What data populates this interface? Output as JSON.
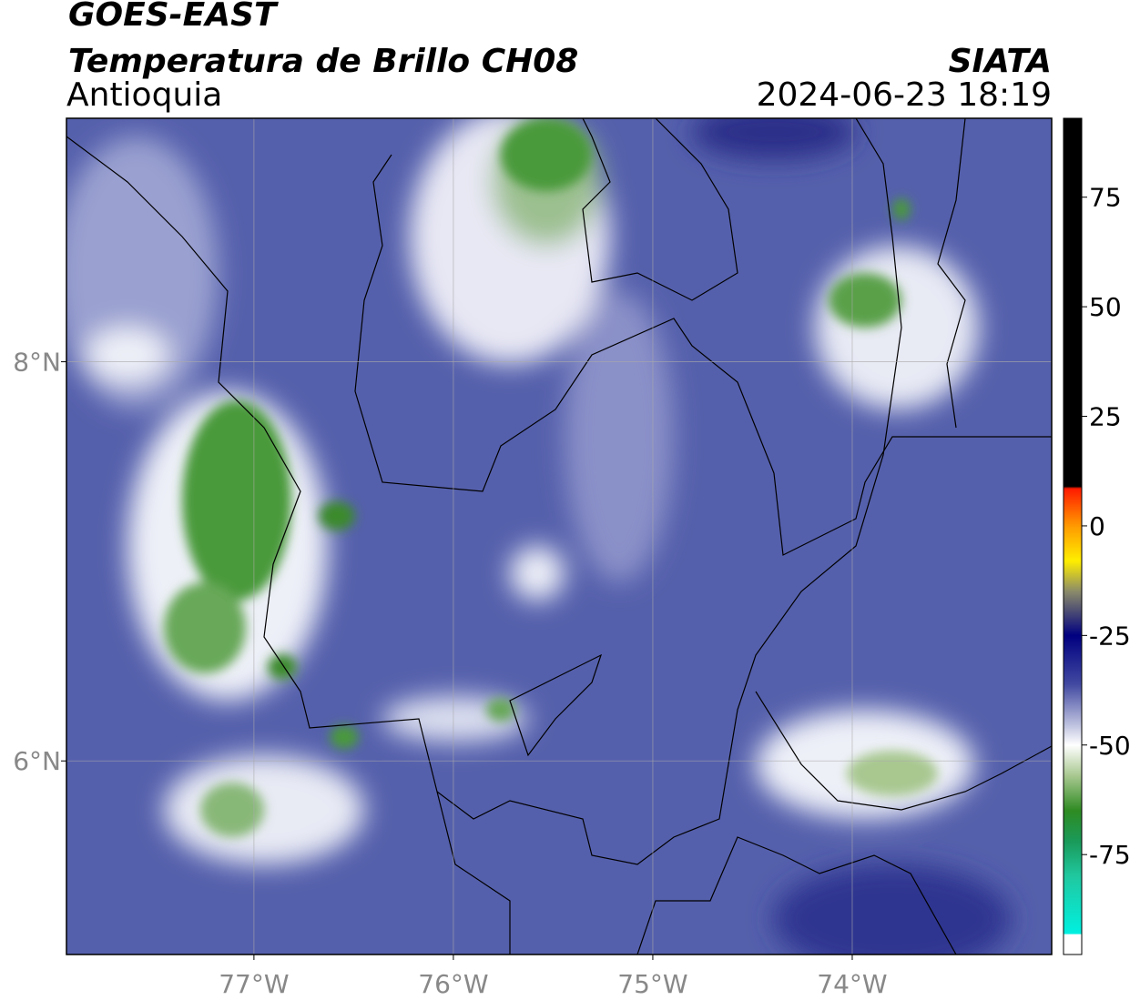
{
  "header": {
    "line1": "GOES-EAST",
    "title": "Temperatura de Brillo CH08",
    "agency": "SIATA",
    "region": "Antioquia",
    "timestamp": "2024-06-23 18:19"
  },
  "map": {
    "xlim": [
      -77.94,
      -73.0
    ],
    "ylim": [
      5.03,
      9.22
    ],
    "xticks": [
      {
        "value": -77,
        "label": "77°W"
      },
      {
        "value": -76,
        "label": "76°W"
      },
      {
        "value": -75,
        "label": "75°W"
      },
      {
        "value": -74,
        "label": "74°W"
      }
    ],
    "yticks": [
      {
        "value": 8,
        "label": "8°N"
      },
      {
        "value": 6,
        "label": "6°N"
      }
    ],
    "grid": true
  },
  "colorbar": {
    "lim": [
      -97.8,
      93
    ],
    "ticks": [
      75,
      50,
      25,
      0,
      -25,
      -50,
      -75
    ],
    "stops": [
      {
        "value": 93,
        "color": "#000000"
      },
      {
        "value": 9,
        "color": "#000000"
      },
      {
        "value": 8.5,
        "color": "#ff1a00"
      },
      {
        "value": 0,
        "color": "#ff9a00"
      },
      {
        "value": -8,
        "color": "#ffee00"
      },
      {
        "value": -15,
        "color": "#8a8a6a"
      },
      {
        "value": -25,
        "color": "#000080"
      },
      {
        "value": -36,
        "color": "#4048a0"
      },
      {
        "value": -45,
        "color": "#b8bcdc"
      },
      {
        "value": -50,
        "color": "#ffffff"
      },
      {
        "value": -57,
        "color": "#a8c890"
      },
      {
        "value": -65,
        "color": "#2e8b22"
      },
      {
        "value": -72,
        "color": "#1a9a5a"
      },
      {
        "value": -80,
        "color": "#20c8a0"
      },
      {
        "value": -93,
        "color": "#00f0e0"
      },
      {
        "value": -93.3,
        "color": "#ffffff"
      },
      {
        "value": -97.8,
        "color": "#ffffff"
      }
    ]
  }
}
